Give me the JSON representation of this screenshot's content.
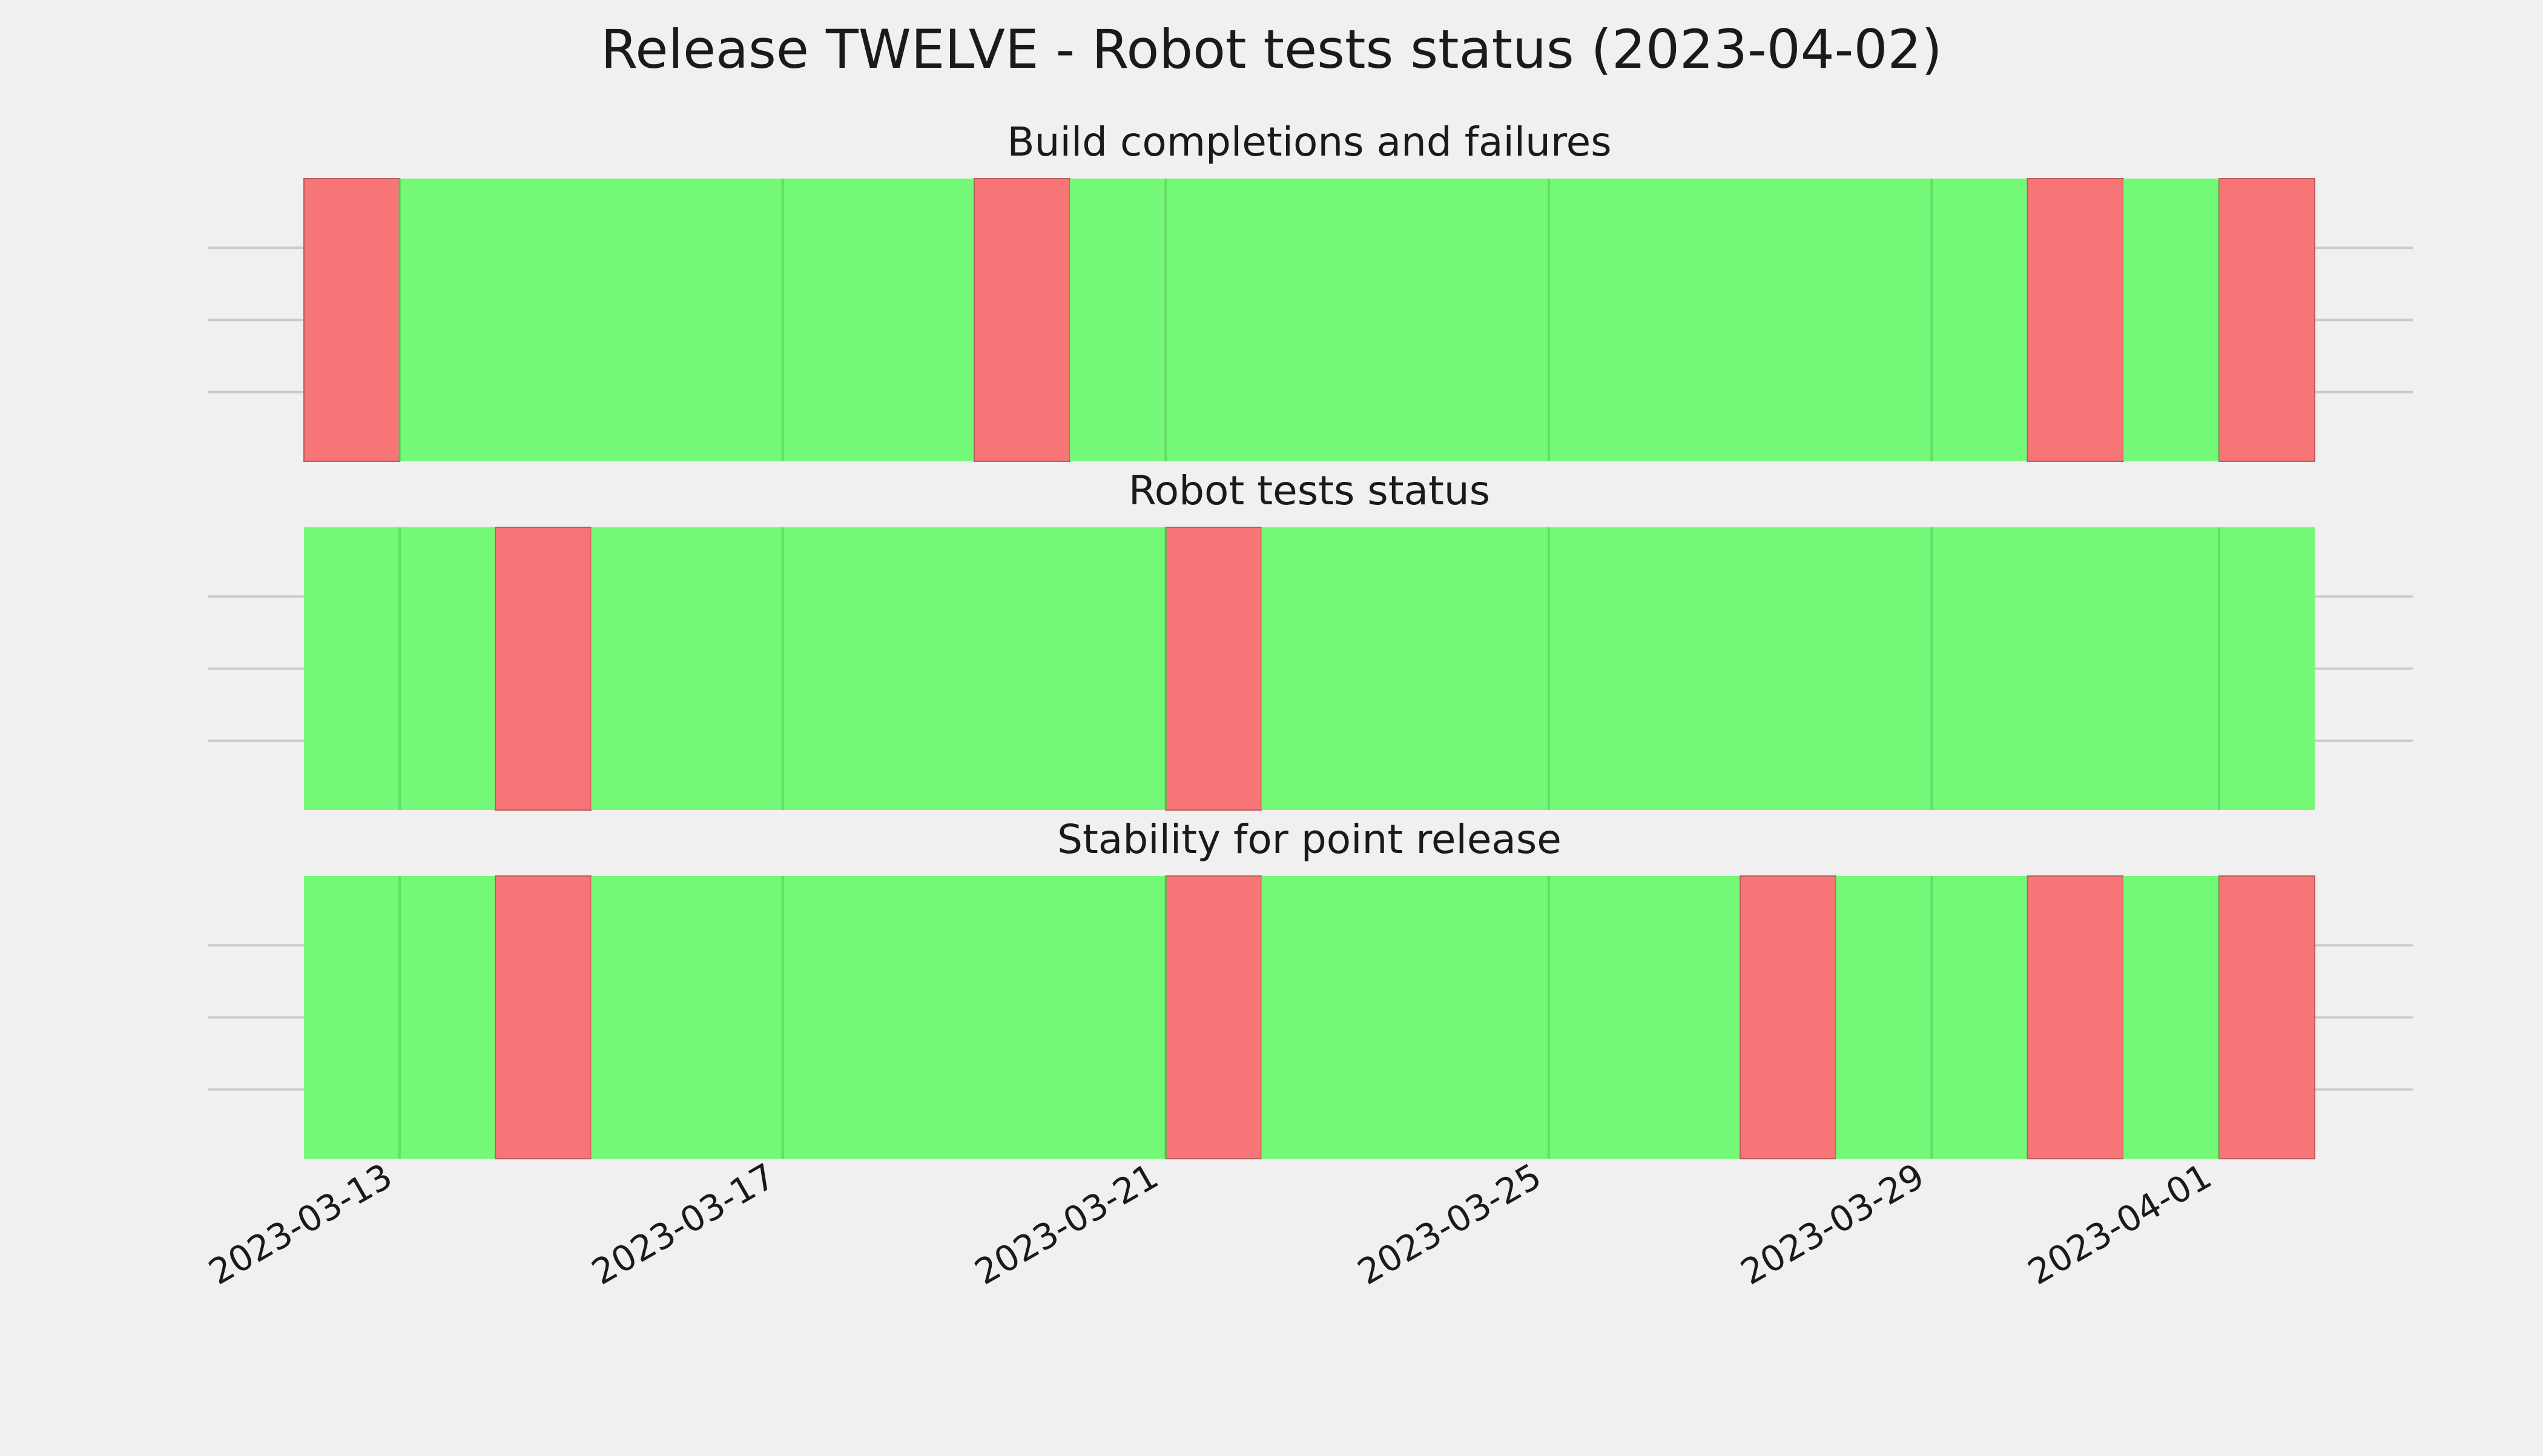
{
  "chart_data": {
    "type": "timeline",
    "title": "Release TWELVE - Robot tests status (2023-04-02)",
    "x_range": [
      "2023-03-12",
      "2023-04-02"
    ],
    "x_ticks": [
      "2023-03-13",
      "2023-03-17",
      "2023-03-21",
      "2023-03-25",
      "2023-03-29",
      "2023-04-01"
    ],
    "grid": true,
    "colors": {
      "pass": "#74f877",
      "fail": "#f77576",
      "background": "#f0f0f0",
      "grid": "#cbcbcb"
    },
    "panels": [
      {
        "title": "Build completions and failures",
        "segments": [
          {
            "start": "2023-03-12",
            "end": "2023-03-13",
            "status": "fail"
          },
          {
            "start": "2023-03-13",
            "end": "2023-03-19",
            "status": "pass"
          },
          {
            "start": "2023-03-19",
            "end": "2023-03-20",
            "status": "fail"
          },
          {
            "start": "2023-03-20",
            "end": "2023-03-30",
            "status": "pass"
          },
          {
            "start": "2023-03-30",
            "end": "2023-03-31",
            "status": "fail"
          },
          {
            "start": "2023-03-31",
            "end": "2023-04-01",
            "status": "pass"
          },
          {
            "start": "2023-04-01",
            "end": "2023-04-02",
            "status": "fail"
          }
        ]
      },
      {
        "title": "Robot tests status",
        "segments": [
          {
            "start": "2023-03-12",
            "end": "2023-03-14",
            "status": "pass"
          },
          {
            "start": "2023-03-14",
            "end": "2023-03-15",
            "status": "fail"
          },
          {
            "start": "2023-03-15",
            "end": "2023-03-21",
            "status": "pass"
          },
          {
            "start": "2023-03-21",
            "end": "2023-03-22",
            "status": "fail"
          },
          {
            "start": "2023-03-22",
            "end": "2023-04-02",
            "status": "pass"
          }
        ]
      },
      {
        "title": "Stability for point release",
        "segments": [
          {
            "start": "2023-03-12",
            "end": "2023-03-14",
            "status": "pass"
          },
          {
            "start": "2023-03-14",
            "end": "2023-03-15",
            "status": "fail"
          },
          {
            "start": "2023-03-15",
            "end": "2023-03-21",
            "status": "pass"
          },
          {
            "start": "2023-03-21",
            "end": "2023-03-22",
            "status": "fail"
          },
          {
            "start": "2023-03-22",
            "end": "2023-03-27",
            "status": "pass"
          },
          {
            "start": "2023-03-27",
            "end": "2023-03-28",
            "status": "fail"
          },
          {
            "start": "2023-03-28",
            "end": "2023-03-30",
            "status": "pass"
          },
          {
            "start": "2023-03-30",
            "end": "2023-03-31",
            "status": "fail"
          },
          {
            "start": "2023-03-31",
            "end": "2023-04-01",
            "status": "pass"
          },
          {
            "start": "2023-04-01",
            "end": "2023-04-02",
            "status": "fail"
          }
        ]
      }
    ]
  }
}
